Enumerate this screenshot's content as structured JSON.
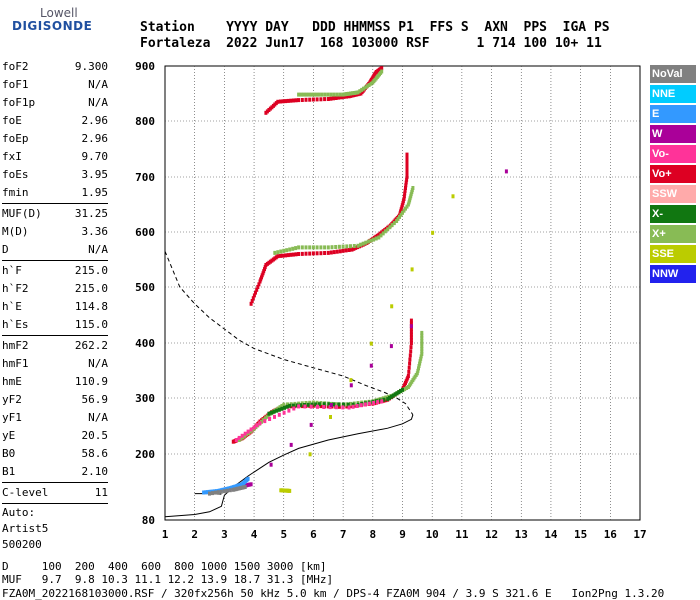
{
  "logo": {
    "line1": "Lowell",
    "line2": "DIGISONDE"
  },
  "header": {
    "labels": "Station    YYYY DAY   DDD HHMMSS P1  FFS S  AXN  PPS  IGA PS",
    "values": "Fortaleza  2022 Jun17  168 103000 RSF      1 714 100 10+ 11"
  },
  "params": {
    "group1": [
      {
        "k": "foF2",
        "v": "9.300"
      },
      {
        "k": "foF1",
        "v": "N/A"
      },
      {
        "k": "foF1p",
        "v": "N/A"
      },
      {
        "k": "foE",
        "v": "2.96"
      },
      {
        "k": "foEp",
        "v": "2.96"
      },
      {
        "k": "fxI",
        "v": "9.70"
      },
      {
        "k": "foEs",
        "v": "3.95"
      },
      {
        "k": "fmin",
        "v": "1.95"
      }
    ],
    "group2": [
      {
        "k": "MUF(D)",
        "v": "31.25"
      },
      {
        "k": "M(D)",
        "v": "3.36"
      },
      {
        "k": "D",
        "v": "N/A"
      }
    ],
    "group3": [
      {
        "k": "h`F",
        "v": "215.0"
      },
      {
        "k": "h`F2",
        "v": "215.0"
      },
      {
        "k": "h`E",
        "v": "114.8"
      },
      {
        "k": "h`Es",
        "v": "115.0"
      }
    ],
    "group4": [
      {
        "k": "hmF2",
        "v": "262.2"
      },
      {
        "k": "hmF1",
        "v": "N/A"
      },
      {
        "k": "hmE",
        "v": "110.9"
      },
      {
        "k": "yF2",
        "v": "56.9"
      },
      {
        "k": "yF1",
        "v": "N/A"
      },
      {
        "k": "yE",
        "v": "20.5"
      },
      {
        "k": "B0",
        "v": "58.6"
      },
      {
        "k": "B1",
        "v": "2.10"
      }
    ],
    "group5": [
      {
        "k": "C-level",
        "v": "11"
      }
    ],
    "auto": {
      "l1": "Auto:",
      "l2": "Artist5",
      "l3": "500200"
    }
  },
  "legend": [
    {
      "label": "NoVal",
      "color": "#808080"
    },
    {
      "label": "NNE",
      "color": "#00ccff"
    },
    {
      "label": "E",
      "color": "#3399ff"
    },
    {
      "label": "W",
      "color": "#aa0099"
    },
    {
      "label": "Vo-",
      "color": "#ff3399"
    },
    {
      "label": "Vo+",
      "color": "#dd0022"
    },
    {
      "label": "SSW",
      "color": "#ffaaaa"
    },
    {
      "label": "X-",
      "color": "#117711"
    },
    {
      "label": "X+",
      "color": "#88bb55"
    },
    {
      "label": "SSE",
      "color": "#bbcc00"
    },
    {
      "label": "NNW",
      "color": "#2222ee"
    }
  ],
  "footer": {
    "l1": "D     100  200  400  600  800 1000 1500 3000 [km]",
    "l2": "MUF   9.7  9.8 10.3 11.1 12.2 13.9 18.7 31.3 [MHz]",
    "l3": "FZA0M_2022168103000.RSF / 320fx256h 50 kHz 5.0 km / DPS-4 FZA0M 904 / 3.9 S 321.6 E   Ion2Png 1.3.20"
  },
  "chart_data": {
    "type": "scatter",
    "xlim": [
      1,
      17
    ],
    "ylim": [
      80,
      900
    ],
    "x_ticks": [
      1,
      2,
      3,
      4,
      5,
      6,
      7,
      8,
      9,
      10,
      11,
      12,
      13,
      14,
      15,
      16,
      17
    ],
    "y_ticks": [
      80,
      200,
      300,
      400,
      500,
      600,
      700,
      800,
      900
    ],
    "grid": true,
    "legend_position": "right",
    "series": [
      {
        "name": "Vo+",
        "color": "#dd0022",
        "points": [
          [
            3.3,
            222
          ],
          [
            3.6,
            228
          ],
          [
            3.9,
            240
          ],
          [
            4.2,
            258
          ],
          [
            4.6,
            275
          ],
          [
            5.0,
            285
          ],
          [
            6.0,
            286
          ],
          [
            7.0,
            284
          ],
          [
            8.0,
            290
          ],
          [
            8.5,
            297
          ],
          [
            9.0,
            315
          ],
          [
            9.2,
            340
          ],
          [
            9.3,
            400
          ],
          [
            9.3,
            440
          ]
        ]
      },
      {
        "name": "X+",
        "color": "#88bb55",
        "points": [
          [
            3.5,
            225
          ],
          [
            4.0,
            245
          ],
          [
            4.5,
            270
          ],
          [
            5.0,
            288
          ],
          [
            6.0,
            292
          ],
          [
            7.0,
            288
          ],
          [
            8.0,
            294
          ],
          [
            8.7,
            305
          ],
          [
            9.2,
            320
          ],
          [
            9.5,
            345
          ],
          [
            9.65,
            380
          ],
          [
            9.65,
            418
          ]
        ]
      },
      {
        "name": "X-",
        "color": "#117711",
        "points": [
          [
            4.5,
            272
          ],
          [
            5.2,
            286
          ],
          [
            6.2,
            289
          ],
          [
            7.5,
            288
          ],
          [
            8.5,
            298
          ],
          [
            9.0,
            315
          ]
        ]
      },
      {
        "name": "Vo-",
        "color": "#ff3399",
        "points": [
          [
            3.4,
            225
          ],
          [
            4.2,
            255
          ],
          [
            5.5,
            285
          ],
          [
            7.2,
            283
          ],
          [
            8.3,
            294
          ]
        ]
      },
      {
        "name": "W",
        "color": "#aa0099",
        "points": [
          [
            3.0,
            135
          ],
          [
            3.5,
            140
          ],
          [
            3.9,
            145
          ],
          [
            9.3,
            430
          ]
        ]
      },
      {
        "name": "E",
        "color": "#3399ff",
        "points": [
          [
            2.3,
            130
          ],
          [
            2.8,
            133
          ],
          [
            3.2,
            138
          ],
          [
            3.6,
            145
          ],
          [
            3.8,
            155
          ]
        ]
      },
      {
        "name": "NoVal",
        "color": "#808080",
        "points": [
          [
            2.5,
            128
          ],
          [
            3.3,
            135
          ],
          [
            3.7,
            140
          ]
        ]
      },
      {
        "name": "SSE",
        "color": "#bbcc00",
        "points": [
          [
            4.9,
            134
          ],
          [
            5.2,
            133
          ],
          [
            10.7,
            665
          ]
        ]
      },
      {
        "name": "Vo+ 2nd",
        "color": "#dd0022",
        "points": [
          [
            3.9,
            470
          ],
          [
            4.2,
            510
          ],
          [
            4.4,
            540
          ],
          [
            4.8,
            556
          ],
          [
            5.5,
            560
          ],
          [
            6.5,
            562
          ],
          [
            7.3,
            568
          ],
          [
            7.8,
            580
          ],
          [
            8.2,
            595
          ],
          [
            8.6,
            612
          ],
          [
            8.9,
            630
          ],
          [
            9.05,
            660
          ],
          [
            9.15,
            700
          ],
          [
            9.15,
            740
          ]
        ]
      },
      {
        "name": "X+ 2nd",
        "color": "#88bb55",
        "points": [
          [
            4.7,
            562
          ],
          [
            5.5,
            572
          ],
          [
            6.5,
            572
          ],
          [
            7.5,
            575
          ],
          [
            8.2,
            590
          ],
          [
            8.8,
            620
          ],
          [
            9.2,
            650
          ],
          [
            9.35,
            680
          ]
        ]
      },
      {
        "name": "Vo+ 3rd",
        "color": "#dd0022",
        "points": [
          [
            4.4,
            815
          ],
          [
            4.8,
            835
          ],
          [
            5.5,
            838
          ],
          [
            6.5,
            840
          ],
          [
            7.2,
            845
          ],
          [
            7.6,
            850
          ],
          [
            7.9,
            870
          ],
          [
            8.1,
            888
          ],
          [
            8.3,
            896
          ]
        ]
      },
      {
        "name": "X+ 3rd",
        "color": "#88bb55",
        "points": [
          [
            5.5,
            848
          ],
          [
            6.2,
            848
          ],
          [
            7.0,
            848
          ],
          [
            7.5,
            852
          ],
          [
            8.0,
            870
          ],
          [
            8.3,
            890
          ]
        ]
      },
      {
        "name": "W isolated",
        "color": "#aa0099",
        "points": [
          [
            12.5,
            710
          ]
        ]
      }
    ],
    "profile_curve": [
      [
        1.0,
        86
      ],
      [
        2.0,
        90
      ],
      [
        2.5,
        95
      ],
      [
        2.9,
        105
      ],
      [
        3.0,
        125
      ],
      [
        3.3,
        140
      ],
      [
        3.8,
        160
      ],
      [
        4.5,
        185
      ],
      [
        5.0,
        198
      ],
      [
        5.5,
        210
      ],
      [
        6.5,
        225
      ],
      [
        7.5,
        236
      ],
      [
        8.5,
        246
      ],
      [
        9.0,
        254
      ],
      [
        9.3,
        262
      ],
      [
        9.35,
        270
      ]
    ],
    "profile_dashed": [
      [
        1.0,
        565
      ],
      [
        1.5,
        500
      ],
      [
        2.0,
        470
      ],
      [
        2.5,
        445
      ],
      [
        3.0,
        425
      ],
      [
        3.5,
        405
      ],
      [
        4.0,
        390
      ],
      [
        5.0,
        370
      ],
      [
        6.0,
        355
      ],
      [
        7.0,
        340
      ],
      [
        7.8,
        322
      ],
      [
        8.4,
        310
      ],
      [
        8.8,
        300
      ],
      [
        9.1,
        290
      ],
      [
        9.35,
        270
      ]
    ],
    "profile_low": [
      [
        2.0,
        128
      ],
      [
        2.5,
        128
      ],
      [
        2.9,
        127
      ]
    ]
  }
}
